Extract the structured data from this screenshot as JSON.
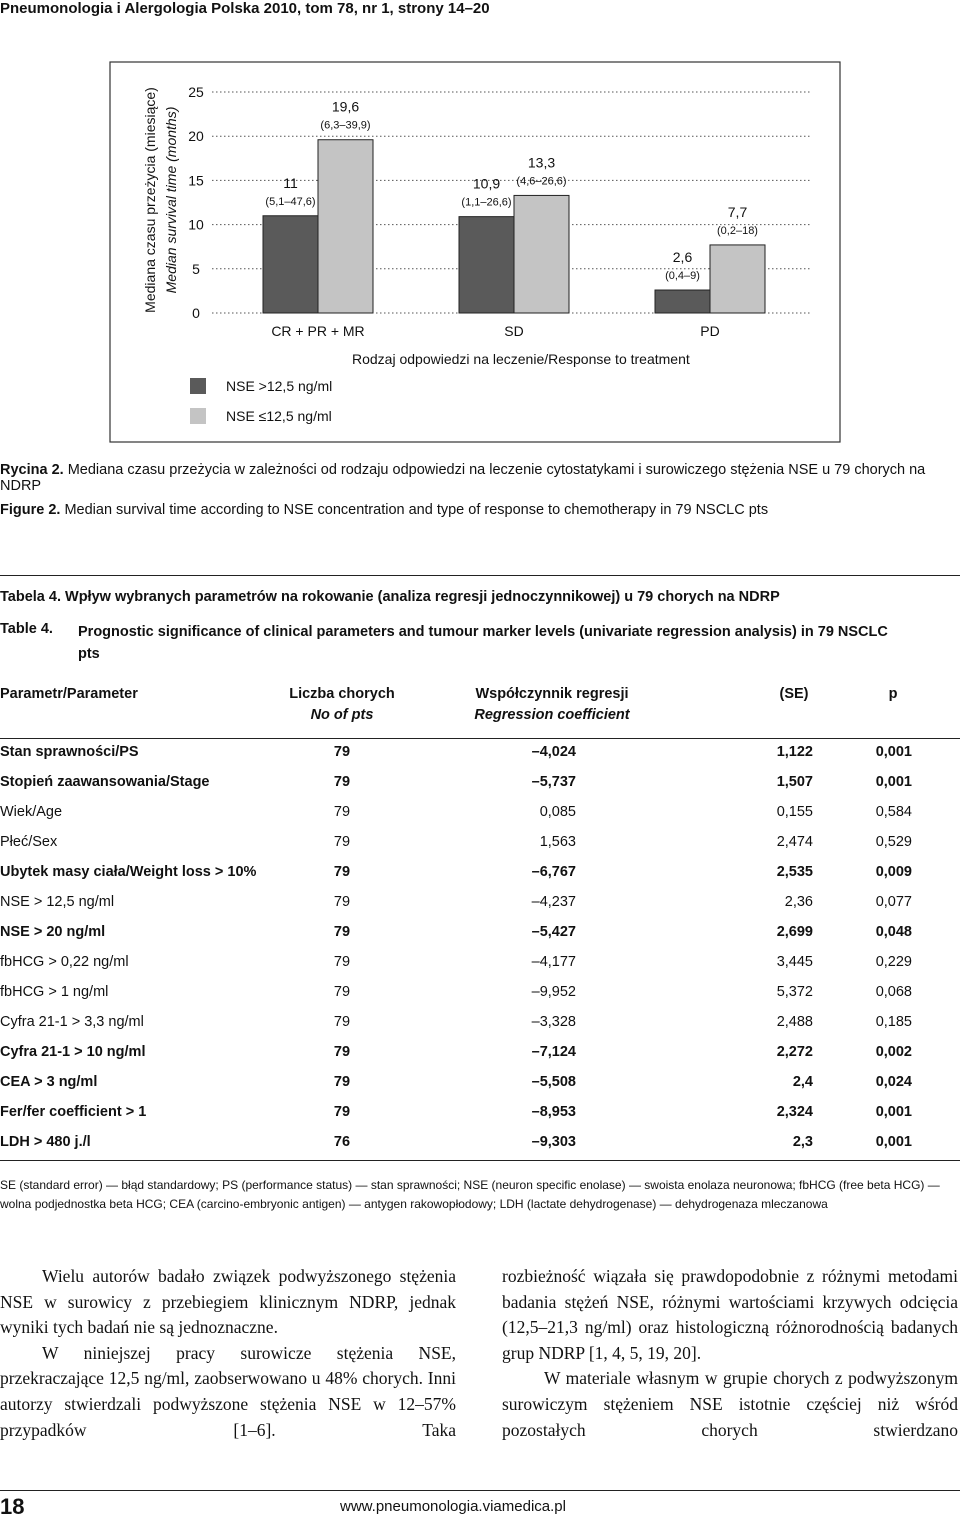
{
  "header": {
    "title": "Pneumonologia i Alergologia Polska 2010, tom 78, nr 1, strony 14–20"
  },
  "chart_data": {
    "type": "bar",
    "ylabel": "Mediana czasu przeżycia (miesiące)",
    "ylabel_en": "Median survival time (months)",
    "xlabel": "Rodzaj odpowiedzi na leczenie/Response to treatment",
    "categories": [
      "CR + PR + MR",
      "SD",
      "PD"
    ],
    "series": [
      {
        "name": "NSE >12,5 ng/ml",
        "color": "#5a5a5a",
        "values": [
          11,
          10.9,
          2.6
        ],
        "value_labels": [
          "11",
          "10,9",
          "2,6"
        ],
        "intervals": [
          "(5,1–47,6)",
          "(1,1–26,6)",
          "(0,4–9)"
        ]
      },
      {
        "name": "NSE ≤12,5 ng/ml",
        "color": "#c4c4c4",
        "values": [
          19.6,
          13.3,
          7.7
        ],
        "value_labels": [
          "19,6",
          "13,3",
          "7,7"
        ],
        "intervals": [
          "(6,3–39,9)",
          "(4,6–26,6)",
          "(0,2–18)"
        ]
      }
    ],
    "ylim": [
      0,
      25
    ],
    "yticks": [
      0,
      5,
      10,
      15,
      20,
      25
    ],
    "grid": true,
    "legend": "bottom-left"
  },
  "figure_caption": {
    "pl": {
      "label": "Rycina 2.",
      "text": "Mediana czasu przeżycia w zależności od rodzaju odpowiedzi na leczenie cytostatykami i surowiczego stężenia NSE u 79 chorych na NDRP"
    },
    "en": {
      "label": "Figure 2.",
      "text": "Median survival time according to NSE concentration and type of response to chemotherapy in 79 NSCLC pts"
    }
  },
  "table": {
    "caption_pl": {
      "label": "Tabela 4.",
      "text": "Wpływ wybranych parametrów na rokowanie (analiza regresji jednoczynnikowej) u 79 chorych na NDRP"
    },
    "caption_en": {
      "label": "Table 4.",
      "text": "Prognostic significance of clinical parameters and tumour marker levels (univariate regression analysis) in 79 NSCLC pts"
    },
    "columns": [
      {
        "pl": "Parametr/Parameter"
      },
      {
        "pl": "Liczba chorych",
        "en": "No of pts"
      },
      {
        "pl": "Współczynnik regresji",
        "en": "Regression coefficient"
      },
      {
        "pl": "(SE)"
      },
      {
        "pl": "p"
      }
    ],
    "rows": [
      {
        "bold": true,
        "cells": [
          "Stan sprawności/PS",
          "79",
          "–4,024",
          "1,122",
          "0,001"
        ]
      },
      {
        "bold": true,
        "cells": [
          "Stopień zaawansowania/Stage",
          "79",
          "–5,737",
          "1,507",
          "0,001"
        ]
      },
      {
        "bold": false,
        "cells": [
          "Wiek/Age",
          "79",
          "0,085",
          "0,155",
          "0,584"
        ]
      },
      {
        "bold": false,
        "cells": [
          "Płeć/Sex",
          "79",
          "1,563",
          "2,474",
          "0,529"
        ]
      },
      {
        "bold": true,
        "cells": [
          "Ubytek masy ciała/Weight loss > 10%",
          "79",
          "–6,767",
          "2,535",
          "0,009"
        ]
      },
      {
        "bold": false,
        "cells": [
          "NSE > 12,5 ng/ml",
          "79",
          "–4,237",
          "2,36",
          "0,077"
        ]
      },
      {
        "bold": true,
        "cells": [
          "NSE > 20 ng/ml",
          "79",
          "–5,427",
          "2,699",
          "0,048"
        ]
      },
      {
        "bold": false,
        "cells": [
          "fbHCG > 0,22 ng/ml",
          "79",
          "–4,177",
          "3,445",
          "0,229"
        ]
      },
      {
        "bold": false,
        "cells": [
          "fbHCG > 1 ng/ml",
          "79",
          "–9,952",
          "5,372",
          "0,068"
        ]
      },
      {
        "bold": false,
        "cells": [
          "Cyfra 21-1 > 3,3 ng/ml",
          "79",
          "–3,328",
          "2,488",
          "0,185"
        ]
      },
      {
        "bold": true,
        "cells": [
          "Cyfra 21-1 > 10 ng/ml",
          "79",
          "–7,124",
          "2,272",
          "0,002"
        ]
      },
      {
        "bold": true,
        "cells": [
          "CEA > 3 ng/ml",
          "79",
          "–5,508",
          "2,4",
          "0,024"
        ]
      },
      {
        "bold": true,
        "cells": [
          "Fer/fer coefficient > 1",
          "79",
          "–8,953",
          "2,324",
          "0,001"
        ]
      },
      {
        "bold": true,
        "cells": [
          "LDH > 480 j./l",
          "76",
          "–9,303",
          "2,3",
          "0,001"
        ]
      }
    ],
    "footnote": "SE (standard error) — błąd standardowy; PS (performance status) — stan sprawności; NSE (neuron specific enolase) — swoista enolaza neuronowa; fbHCG (free beta HCG) — wolna podjednostka beta HCG; CEA (carcino-embryonic antigen) — antygen rakowopłodowy; LDH (lactate dehydrogenase) — dehydrogenaza mleczanowa"
  },
  "body": {
    "left": [
      "Wielu autorów badało związek podwyższonego stężenia NSE w surowicy z przebiegiem klinicznym NDRP, jednak wyniki tych badań nie są jednoznaczne.",
      "W niniejszej pracy surowicze stężenia NSE, przekraczające 12,5 ng/ml, zaobserwowano u 48% chorych. Inni autorzy stwierdzali podwyższone stężenia NSE w 12–57% przypadków [1–6]. Taka"
    ],
    "right": [
      "rozbieżność wiązała się prawdopodobnie z różnymi metodami badania stężeń NSE, różnymi wartościami krzywych odcięcia (12,5–21,3 ng/ml) oraz histologiczną różnorodnością badanych grup NDRP [1, 4, 5, 19, 20].",
      "W materiale własnym w grupie chorych z podwyższonym surowiczym stężeniem NSE istotnie częściej niż wśród pozostałych chorych stwierdzano"
    ]
  },
  "footer": {
    "page": "18",
    "url": "www.pneumonologia.viamedica.pl"
  }
}
